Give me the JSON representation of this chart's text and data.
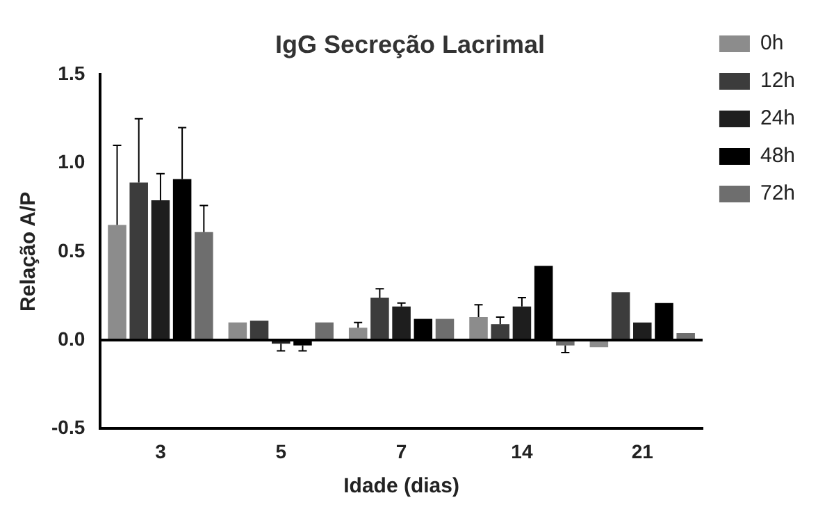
{
  "chart_data": {
    "type": "bar",
    "title": "IgG Secreção Lacrimal",
    "xlabel": "Idade (dias)",
    "ylabel": "Relação A/P",
    "categories": [
      "3",
      "5",
      "7",
      "14",
      "21"
    ],
    "series": [
      {
        "name": "0h",
        "color": "#8c8c8c",
        "values": [
          0.65,
          0.1,
          0.07,
          0.13,
          -0.04
        ],
        "errors": [
          [
            0.65,
            1.1
          ],
          null,
          [
            0.07,
            0.1
          ],
          [
            0.13,
            0.2
          ],
          null
        ]
      },
      {
        "name": "12h",
        "color": "#3c3c3c",
        "values": [
          0.89,
          0.11,
          0.24,
          0.09,
          0.27
        ],
        "errors": [
          [
            0.89,
            1.25
          ],
          null,
          [
            0.24,
            0.29
          ],
          [
            0.09,
            0.13
          ],
          null
        ]
      },
      {
        "name": "24h",
        "color": "#1e1e1e",
        "values": [
          0.79,
          -0.02,
          0.19,
          0.19,
          0.1
        ],
        "errors": [
          [
            0.79,
            0.94
          ],
          [
            -0.06,
            -0.02
          ],
          [
            0.19,
            0.21
          ],
          [
            0.19,
            0.24
          ],
          null
        ]
      },
      {
        "name": "48h",
        "color": "#000000",
        "values": [
          0.91,
          -0.03,
          0.12,
          0.42,
          0.21
        ],
        "errors": [
          [
            0.91,
            1.2
          ],
          [
            -0.06,
            -0.03
          ],
          null,
          null,
          null
        ]
      },
      {
        "name": "72h",
        "color": "#6e6e6e",
        "values": [
          0.61,
          0.1,
          0.12,
          -0.03,
          0.04
        ],
        "errors": [
          [
            0.61,
            0.76
          ],
          null,
          null,
          [
            -0.07,
            -0.03
          ],
          null
        ]
      }
    ],
    "ylim": [
      -0.5,
      1.5
    ],
    "yticks": [
      -0.5,
      {
        "value": 0,
        "label": "0.0"
      },
      0.5,
      {
        "value": 1,
        "label": "1.0"
      },
      1.5
    ],
    "ref_lines": [
      {
        "axis": "y",
        "value": 0,
        "color": "#000000"
      }
    ],
    "grid": false,
    "legend": "right"
  }
}
